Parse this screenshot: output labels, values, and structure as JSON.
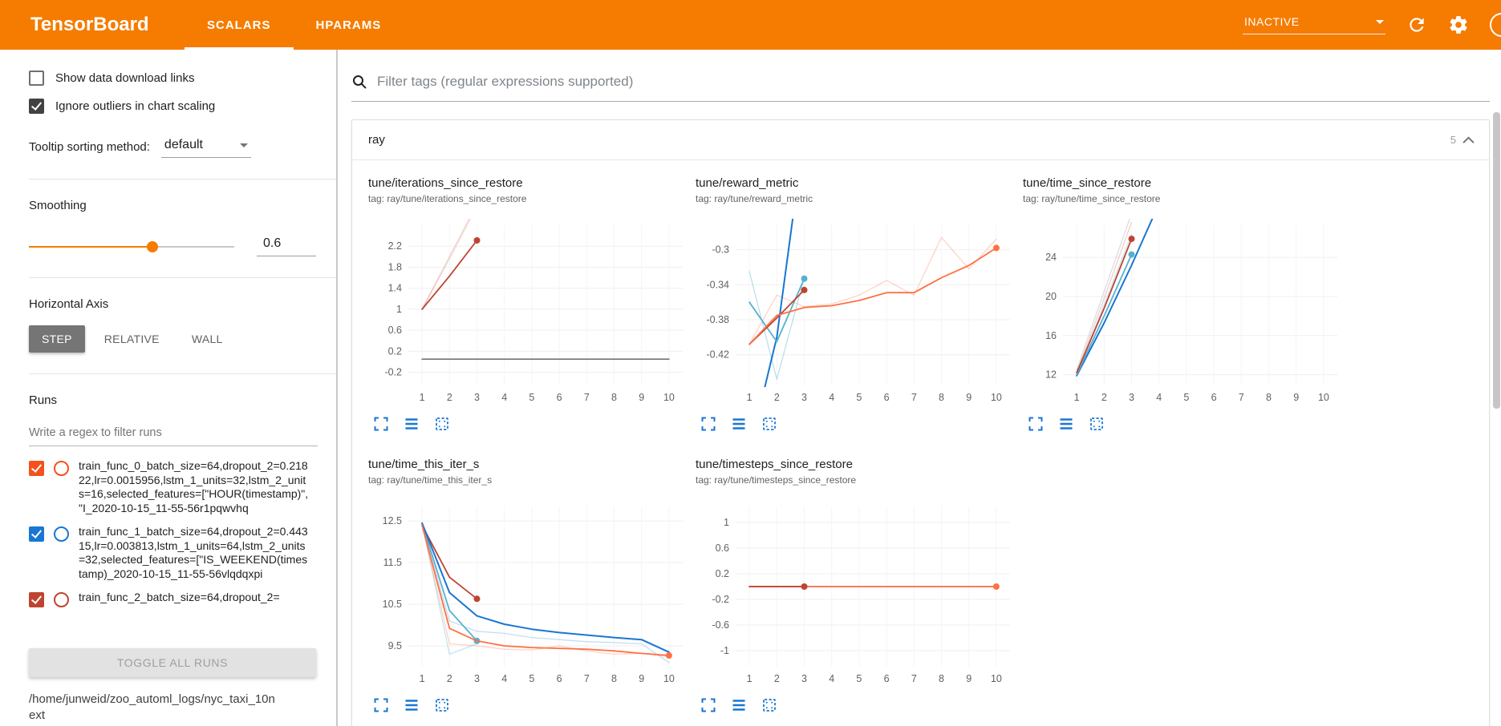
{
  "header": {
    "title": "TensorBoard",
    "tabs": [
      {
        "label": "SCALARS",
        "active": true
      },
      {
        "label": "HPARAMS",
        "active": false
      }
    ],
    "status": "INACTIVE"
  },
  "sidebar": {
    "checkboxes": [
      {
        "label": "Show data download links",
        "checked": false
      },
      {
        "label": "Ignore outliers in chart scaling",
        "checked": true
      }
    ],
    "tooltip_sorting": {
      "label": "Tooltip sorting method:",
      "value": "default"
    },
    "smoothing": {
      "label": "Smoothing",
      "value": "0.6"
    },
    "horizontal_axis": {
      "label": "Horizontal Axis",
      "options": [
        "STEP",
        "RELATIVE",
        "WALL"
      ],
      "selected": "STEP"
    },
    "runs": {
      "label": "Runs",
      "filter_placeholder": "Write a regex to filter runs",
      "items": [
        {
          "label": "train_func_0_batch_size=64,dropout_2=0.21822,lr=0.0015956,lstm_1_units=32,lstm_2_units=16,selected_features=[\"HOUR(timestamp)\", \"I_2020-10-15_11-55-56r1pqwvhq",
          "checked": true,
          "color": "#f4511e"
        },
        {
          "label": "train_func_1_batch_size=64,dropout_2=0.44315,lr=0.003813,lstm_1_units=64,lstm_2_units=32,selected_features=[\"IS_WEEKEND(timestamp)_2020-10-15_11-55-56vlqdqxpi",
          "checked": true,
          "color": "#1976d2"
        },
        {
          "label": "train_func_2_batch_size=64,dropout_2=",
          "checked": true,
          "color": "#bf4430"
        }
      ],
      "toggle_all_label": "TOGGLE ALL RUNS",
      "log_path": "/home/junweid/zoo_automl_logs/nyc_taxi_10next"
    }
  },
  "main": {
    "filter_placeholder": "Filter tags (regular expressions supported)",
    "section": {
      "title": "ray",
      "count": "5"
    }
  },
  "chart_data": [
    {
      "type": "line",
      "title": "tune/iterations_since_restore",
      "tag": "tag: ray/tune/iterations_since_restore",
      "xlim": [
        0.5,
        10.5
      ],
      "ylim": [
        -0.45,
        2.6
      ],
      "x_ticks": [
        1,
        2,
        3,
        4,
        5,
        6,
        7,
        8,
        9,
        10
      ],
      "y_ticks": [
        "-0.2",
        "0.2",
        "0.6",
        "1",
        "1.4",
        "1.8",
        "2.2"
      ],
      "series": [
        {
          "name": "raw-red",
          "color": "#bf4430",
          "opacity": 0.25,
          "width": 1.3,
          "x": [
            1,
            2,
            3
          ],
          "y": [
            1,
            2,
            3
          ]
        },
        {
          "name": "raw-red-2",
          "color": "#bf4430",
          "opacity": 0.15,
          "width": 1.3,
          "x": [
            1,
            2,
            3
          ],
          "y": [
            1,
            1.95,
            2.95
          ]
        },
        {
          "name": "gray-flat",
          "color": "#757575",
          "opacity": 1,
          "width": 1.6,
          "x": [
            1,
            10
          ],
          "y": [
            0.05,
            0.05
          ]
        },
        {
          "name": "smoothed-red",
          "color": "#bf4430",
          "opacity": 1,
          "width": 1.8,
          "x": [
            1,
            2,
            3
          ],
          "y": [
            1,
            1.63,
            2.31
          ],
          "dot": true
        }
      ]
    },
    {
      "type": "line",
      "title": "tune/reward_metric",
      "tag": "tag: ray/tune/reward_metric",
      "xlim": [
        0.5,
        10.5
      ],
      "ylim": [
        -0.455,
        -0.272
      ],
      "x_ticks": [
        1,
        2,
        3,
        4,
        5,
        6,
        7,
        8,
        9,
        10
      ],
      "y_ticks": [
        "-0.42",
        "-0.38",
        "-0.34",
        "-0.3"
      ],
      "series": [
        {
          "name": "raw-orange",
          "color": "#ff7043",
          "opacity": 0.3,
          "width": 1.3,
          "x": [
            1,
            2,
            3,
            4,
            5,
            6,
            7,
            8,
            9,
            10
          ],
          "y": [
            -0.408,
            -0.352,
            -0.365,
            -0.362,
            -0.352,
            -0.335,
            -0.352,
            -0.286,
            -0.322,
            -0.288
          ]
        },
        {
          "name": "raw-cyan",
          "color": "#56b1d0",
          "opacity": 0.4,
          "width": 1.3,
          "x": [
            1,
            2,
            3
          ],
          "y": [
            -0.325,
            -0.448,
            -0.332
          ]
        },
        {
          "name": "smoothed-blue",
          "color": "#1976d2",
          "opacity": 1,
          "width": 2,
          "x": [
            1,
            2,
            2.6
          ],
          "y": [
            -0.53,
            -0.4,
            -0.26
          ]
        },
        {
          "name": "smoothed-cyan",
          "color": "#56b1d0",
          "opacity": 1,
          "width": 1.8,
          "x": [
            1,
            2,
            3
          ],
          "y": [
            -0.36,
            -0.405,
            -0.333
          ],
          "dot": true
        },
        {
          "name": "smoothed-red",
          "color": "#bf4430",
          "opacity": 1,
          "width": 1.8,
          "x": [
            1,
            2,
            3
          ],
          "y": [
            -0.408,
            -0.378,
            -0.346
          ],
          "dot": true
        },
        {
          "name": "smoothed-orange",
          "color": "#ff7043",
          "opacity": 1,
          "width": 1.8,
          "x": [
            1,
            2,
            3,
            4,
            5,
            6,
            7,
            8,
            9,
            10
          ],
          "y": [
            -0.408,
            -0.375,
            -0.366,
            -0.364,
            -0.358,
            -0.349,
            -0.349,
            -0.332,
            -0.318,
            -0.298
          ],
          "dot": true
        }
      ]
    },
    {
      "type": "line",
      "title": "tune/time_since_restore",
      "tag": "tag: ray/tune/time_since_restore",
      "xlim": [
        0.5,
        10.5
      ],
      "ylim": [
        10.9,
        27.3
      ],
      "x_ticks": [
        1,
        2,
        3,
        4,
        5,
        6,
        7,
        8,
        9,
        10
      ],
      "y_ticks": [
        "12",
        "16",
        "20",
        "24"
      ],
      "series": [
        {
          "name": "raw-gray",
          "color": "#9e9e9e",
          "opacity": 0.35,
          "width": 1.3,
          "x": [
            1,
            2,
            3
          ],
          "y": [
            12.5,
            20.5,
            28.5
          ]
        },
        {
          "name": "raw-red",
          "color": "#bf4430",
          "opacity": 0.25,
          "width": 1.3,
          "x": [
            1,
            2,
            3
          ],
          "y": [
            12.2,
            19.8,
            27.6
          ]
        },
        {
          "name": "raw-cyan",
          "color": "#56b1d0",
          "opacity": 0.3,
          "width": 1.3,
          "x": [
            1,
            2,
            3
          ],
          "y": [
            12,
            19.2,
            26.4
          ]
        },
        {
          "name": "smoothed-blue",
          "color": "#1976d2",
          "opacity": 1,
          "width": 2,
          "x": [
            1,
            2,
            3,
            4
          ],
          "y": [
            11.9,
            17.3,
            23.2,
            29.5
          ]
        },
        {
          "name": "smoothed-cyan",
          "color": "#56b1d0",
          "opacity": 1,
          "width": 1.8,
          "x": [
            1,
            2,
            3
          ],
          "y": [
            12,
            18,
            24.3
          ],
          "dot": true
        },
        {
          "name": "smoothed-red",
          "color": "#bf4430",
          "opacity": 1,
          "width": 1.8,
          "x": [
            1,
            2,
            3
          ],
          "y": [
            12.2,
            18.8,
            25.9
          ],
          "dot": true
        }
      ]
    },
    {
      "type": "line",
      "title": "tune/time_this_iter_s",
      "tag": "tag: ray/tune/time_this_iter_s",
      "xlim": [
        0.5,
        10.5
      ],
      "ylim": [
        9.0,
        12.85
      ],
      "x_ticks": [
        1,
        2,
        3,
        4,
        5,
        6,
        7,
        8,
        9,
        10
      ],
      "y_ticks": [
        "9.5",
        "10.5",
        "11.5",
        "12.5"
      ],
      "series": [
        {
          "name": "raw-cyan",
          "color": "#56b1d0",
          "opacity": 0.35,
          "width": 1.3,
          "x": [
            1,
            2,
            3
          ],
          "y": [
            12.45,
            9.3,
            9.55
          ]
        },
        {
          "name": "raw-orange",
          "color": "#ff7043",
          "opacity": 0.3,
          "width": 1.3,
          "x": [
            1,
            2,
            3,
            4,
            5,
            6,
            7,
            8,
            9,
            10
          ],
          "y": [
            12.4,
            9.55,
            9.5,
            9.42,
            9.4,
            9.5,
            9.38,
            9.3,
            9.32,
            9.24
          ]
        },
        {
          "name": "raw-blue",
          "color": "#1976d2",
          "opacity": 0.25,
          "width": 1.3,
          "x": [
            1,
            2,
            3,
            4,
            5,
            6,
            7,
            8,
            9,
            10
          ],
          "y": [
            12.45,
            10.1,
            9.85,
            9.8,
            9.7,
            9.65,
            9.6,
            9.58,
            9.55,
            9.1
          ]
        },
        {
          "name": "smoothed-red",
          "color": "#bf4430",
          "opacity": 1,
          "width": 1.8,
          "x": [
            1,
            2,
            3
          ],
          "y": [
            12.4,
            11.15,
            10.63
          ],
          "dot": true
        },
        {
          "name": "smoothed-cyan",
          "color": "#56b1d0",
          "opacity": 1,
          "width": 1.8,
          "x": [
            1,
            2,
            3
          ],
          "y": [
            12.45,
            10.35,
            9.62
          ],
          "dot": true
        },
        {
          "name": "smoothed-blue",
          "color": "#1976d2",
          "opacity": 1,
          "width": 2,
          "x": [
            1,
            2,
            3,
            4,
            5,
            6,
            7,
            8,
            9,
            10
          ],
          "y": [
            12.45,
            10.78,
            10.22,
            10.02,
            9.9,
            9.82,
            9.76,
            9.7,
            9.65,
            9.35
          ]
        },
        {
          "name": "smoothed-orange",
          "color": "#ff7043",
          "opacity": 1,
          "width": 1.8,
          "x": [
            1,
            2,
            3,
            4,
            5,
            6,
            7,
            8,
            9,
            10
          ],
          "y": [
            12.4,
            9.92,
            9.62,
            9.5,
            9.46,
            9.44,
            9.42,
            9.38,
            9.32,
            9.27
          ],
          "dot": true
        }
      ]
    },
    {
      "type": "line",
      "title": "tune/timesteps_since_restore",
      "tag": "tag: ray/tune/timesteps_since_restore",
      "xlim": [
        0.5,
        10.5
      ],
      "ylim": [
        -1.25,
        1.25
      ],
      "x_ticks": [
        1,
        2,
        3,
        4,
        5,
        6,
        7,
        8,
        9,
        10
      ],
      "y_ticks": [
        "-1",
        "-0.6",
        "-0.2",
        "0.2",
        "0.6",
        "1"
      ],
      "series": [
        {
          "name": "gray-flat",
          "color": "#9e9e9e",
          "opacity": 1,
          "width": 1.6,
          "x": [
            1,
            10
          ],
          "y": [
            0,
            0
          ]
        },
        {
          "name": "smoothed-orange",
          "color": "#ff7043",
          "opacity": 1,
          "width": 1.8,
          "x": [
            1,
            10
          ],
          "y": [
            0,
            0
          ],
          "dot": true
        },
        {
          "name": "smoothed-red",
          "color": "#bf4430",
          "opacity": 1,
          "width": 1.8,
          "x": [
            1,
            3
          ],
          "y": [
            0,
            0
          ],
          "dot": true
        }
      ]
    }
  ]
}
